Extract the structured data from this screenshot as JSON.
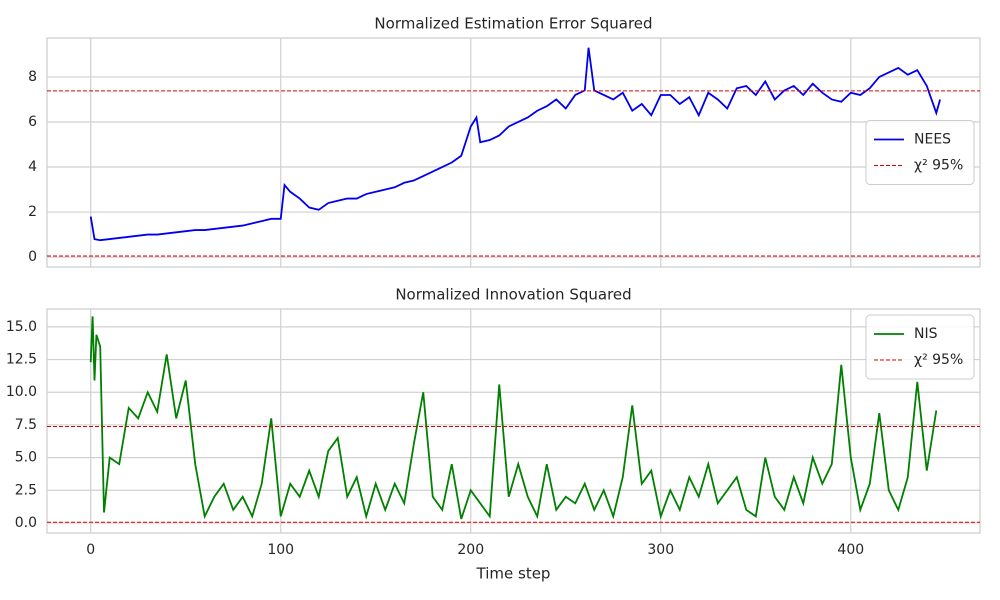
{
  "chart_data": [
    {
      "type": "line",
      "title": "Normalized Estimation Error Squared",
      "x": [
        0,
        2,
        5,
        10,
        15,
        20,
        25,
        30,
        35,
        40,
        45,
        50,
        55,
        60,
        65,
        70,
        75,
        80,
        85,
        90,
        95,
        100,
        102,
        105,
        110,
        115,
        120,
        125,
        130,
        135,
        140,
        145,
        150,
        155,
        160,
        165,
        170,
        175,
        180,
        185,
        190,
        195,
        200,
        203,
        205,
        210,
        215,
        220,
        225,
        230,
        235,
        240,
        245,
        250,
        255,
        260,
        262,
        265,
        270,
        275,
        280,
        285,
        290,
        295,
        300,
        305,
        310,
        315,
        320,
        325,
        330,
        335,
        340,
        345,
        350,
        355,
        360,
        365,
        370,
        375,
        380,
        385,
        390,
        395,
        400,
        405,
        410,
        415,
        420,
        425,
        430,
        435,
        440,
        445,
        447
      ],
      "series": [
        {
          "name": "NEES",
          "color": "#0000ee",
          "values": [
            1.8,
            0.8,
            0.75,
            0.8,
            0.85,
            0.9,
            0.95,
            1.0,
            1.0,
            1.05,
            1.1,
            1.15,
            1.2,
            1.2,
            1.25,
            1.3,
            1.35,
            1.4,
            1.5,
            1.6,
            1.7,
            1.7,
            3.2,
            2.9,
            2.6,
            2.2,
            2.1,
            2.4,
            2.5,
            2.6,
            2.6,
            2.8,
            2.9,
            3.0,
            3.1,
            3.3,
            3.4,
            3.6,
            3.8,
            4.0,
            4.2,
            4.5,
            5.8,
            6.2,
            5.1,
            5.2,
            5.4,
            5.8,
            6.0,
            6.2,
            6.5,
            6.7,
            7.0,
            6.6,
            7.2,
            7.4,
            9.3,
            7.4,
            7.2,
            7.0,
            7.3,
            6.5,
            6.8,
            6.3,
            7.2,
            7.2,
            6.8,
            7.1,
            6.3,
            7.3,
            7.0,
            6.6,
            7.5,
            7.6,
            7.2,
            7.8,
            7.0,
            7.4,
            7.6,
            7.2,
            7.7,
            7.3,
            7.0,
            6.9,
            7.3,
            7.2,
            7.5,
            8.0,
            8.2,
            8.4,
            8.1,
            8.3,
            7.6,
            6.4,
            7.0
          ]
        }
      ],
      "hline": {
        "name": "χ² 95%",
        "color": "#dd0000",
        "values": [
          0.05,
          7.38
        ]
      },
      "xlim": [
        -23,
        468
      ],
      "xticks": [
        0,
        100,
        200,
        300,
        400
      ],
      "ylim": [
        -0.44,
        9.73
      ],
      "yticks": [
        0,
        2,
        4,
        6,
        8
      ],
      "grid": true,
      "legend": "center right"
    },
    {
      "type": "line",
      "title": "Normalized Innovation Squared",
      "xlabel": "Time step",
      "x": [
        0,
        1,
        2,
        3,
        5,
        7,
        10,
        15,
        20,
        25,
        30,
        35,
        40,
        45,
        50,
        55,
        60,
        65,
        70,
        75,
        80,
        85,
        90,
        95,
        100,
        105,
        110,
        115,
        120,
        125,
        130,
        135,
        140,
        145,
        150,
        155,
        160,
        165,
        170,
        175,
        180,
        185,
        190,
        195,
        200,
        205,
        210,
        215,
        220,
        225,
        230,
        235,
        240,
        245,
        250,
        255,
        260,
        265,
        270,
        275,
        280,
        285,
        290,
        295,
        300,
        305,
        310,
        315,
        320,
        325,
        330,
        335,
        340,
        345,
        350,
        355,
        360,
        365,
        370,
        375,
        380,
        385,
        390,
        395,
        400,
        405,
        410,
        415,
        420,
        425,
        430,
        435,
        440,
        445
      ],
      "series": [
        {
          "name": "NIS",
          "color": "#008000",
          "values": [
            12.3,
            15.8,
            10.9,
            14.4,
            13.5,
            0.8,
            5.0,
            4.5,
            8.8,
            8.0,
            10.0,
            8.5,
            12.9,
            8.0,
            10.9,
            4.5,
            0.5,
            2.0,
            3.0,
            1.0,
            2.0,
            0.5,
            3.0,
            8.0,
            0.5,
            3.0,
            2.0,
            4.0,
            2.0,
            5.5,
            6.5,
            2.0,
            3.5,
            0.5,
            3.0,
            1.0,
            3.0,
            1.5,
            6.0,
            10.0,
            2.0,
            1.0,
            4.5,
            0.3,
            2.5,
            1.5,
            0.5,
            10.6,
            2.0,
            4.5,
            2.0,
            0.5,
            4.5,
            1.0,
            2.0,
            1.5,
            3.0,
            1.0,
            2.5,
            0.5,
            3.5,
            9.0,
            3.0,
            4.0,
            0.5,
            2.5,
            1.0,
            3.5,
            2.0,
            4.5,
            1.5,
            2.5,
            3.5,
            1.0,
            0.5,
            5.0,
            2.0,
            1.0,
            3.5,
            1.5,
            5.0,
            3.0,
            4.5,
            12.1,
            5.0,
            1.0,
            3.0,
            8.4,
            2.5,
            1.0,
            3.5,
            10.8,
            4.0,
            8.6
          ]
        }
      ],
      "hline": {
        "name": "χ² 95%",
        "color": "#dd0000",
        "values": [
          0.05,
          7.38
        ]
      },
      "xlim": [
        -23,
        468
      ],
      "xticks": [
        0,
        100,
        200,
        300,
        400
      ],
      "ylim": [
        -0.77,
        16.37
      ],
      "yticks": [
        {
          "value": 0,
          "label": "0.0"
        },
        2.5,
        {
          "value": 5,
          "label": "5.0"
        },
        7.5,
        {
          "value": 10,
          "label": "10.0"
        },
        12.5,
        {
          "value": 15,
          "label": "15.0"
        }
      ],
      "grid": true,
      "legend": "upper right"
    }
  ]
}
